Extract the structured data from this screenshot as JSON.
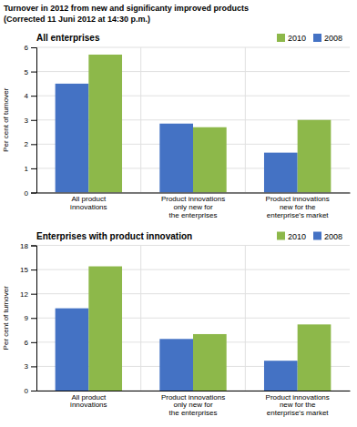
{
  "title": "Turnover in 2012 from new and significanty improved products",
  "subtitle": "(Corrected 11 Juni 2012 at 14:30 p.m.)",
  "chart_data": [
    {
      "type": "bar",
      "title": "All enterprises",
      "y_label": "Per cent of turnover",
      "categories": [
        "All product\ninnovations",
        "Product innovations\nonly new for\nthe enterprises",
        "Product innovations\nnew for the\nenterprise's market"
      ],
      "series": [
        {
          "name": "2008",
          "color": "#4472C4",
          "values": [
            4.5,
            2.85,
            1.65
          ]
        },
        {
          "name": "2010",
          "color": "#8DB84A",
          "values": [
            5.7,
            2.7,
            3.0
          ]
        }
      ],
      "ylim": [
        0,
        6
      ],
      "yticks": [
        0,
        1,
        2,
        3,
        4,
        5,
        6
      ],
      "grid": true,
      "legend": "upper right"
    },
    {
      "type": "bar",
      "title": "Enterprises with product innovation",
      "y_label": "Per cent of turnover",
      "categories": [
        "All product\ninnovations",
        "Product innovations\nonly new for\nthe enterprises",
        "Product innovations\nnew for the\nenterprise's market"
      ],
      "series": [
        {
          "name": "2008",
          "color": "#4472C4",
          "values": [
            10.2,
            6.4,
            3.7
          ]
        },
        {
          "name": "2010",
          "color": "#8DB84A",
          "values": [
            15.4,
            7.0,
            8.2
          ]
        }
      ],
      "ylim": [
        0,
        18
      ],
      "yticks": [
        0,
        3,
        6,
        9,
        12,
        15,
        18
      ],
      "grid": true,
      "legend": "upper right"
    }
  ]
}
